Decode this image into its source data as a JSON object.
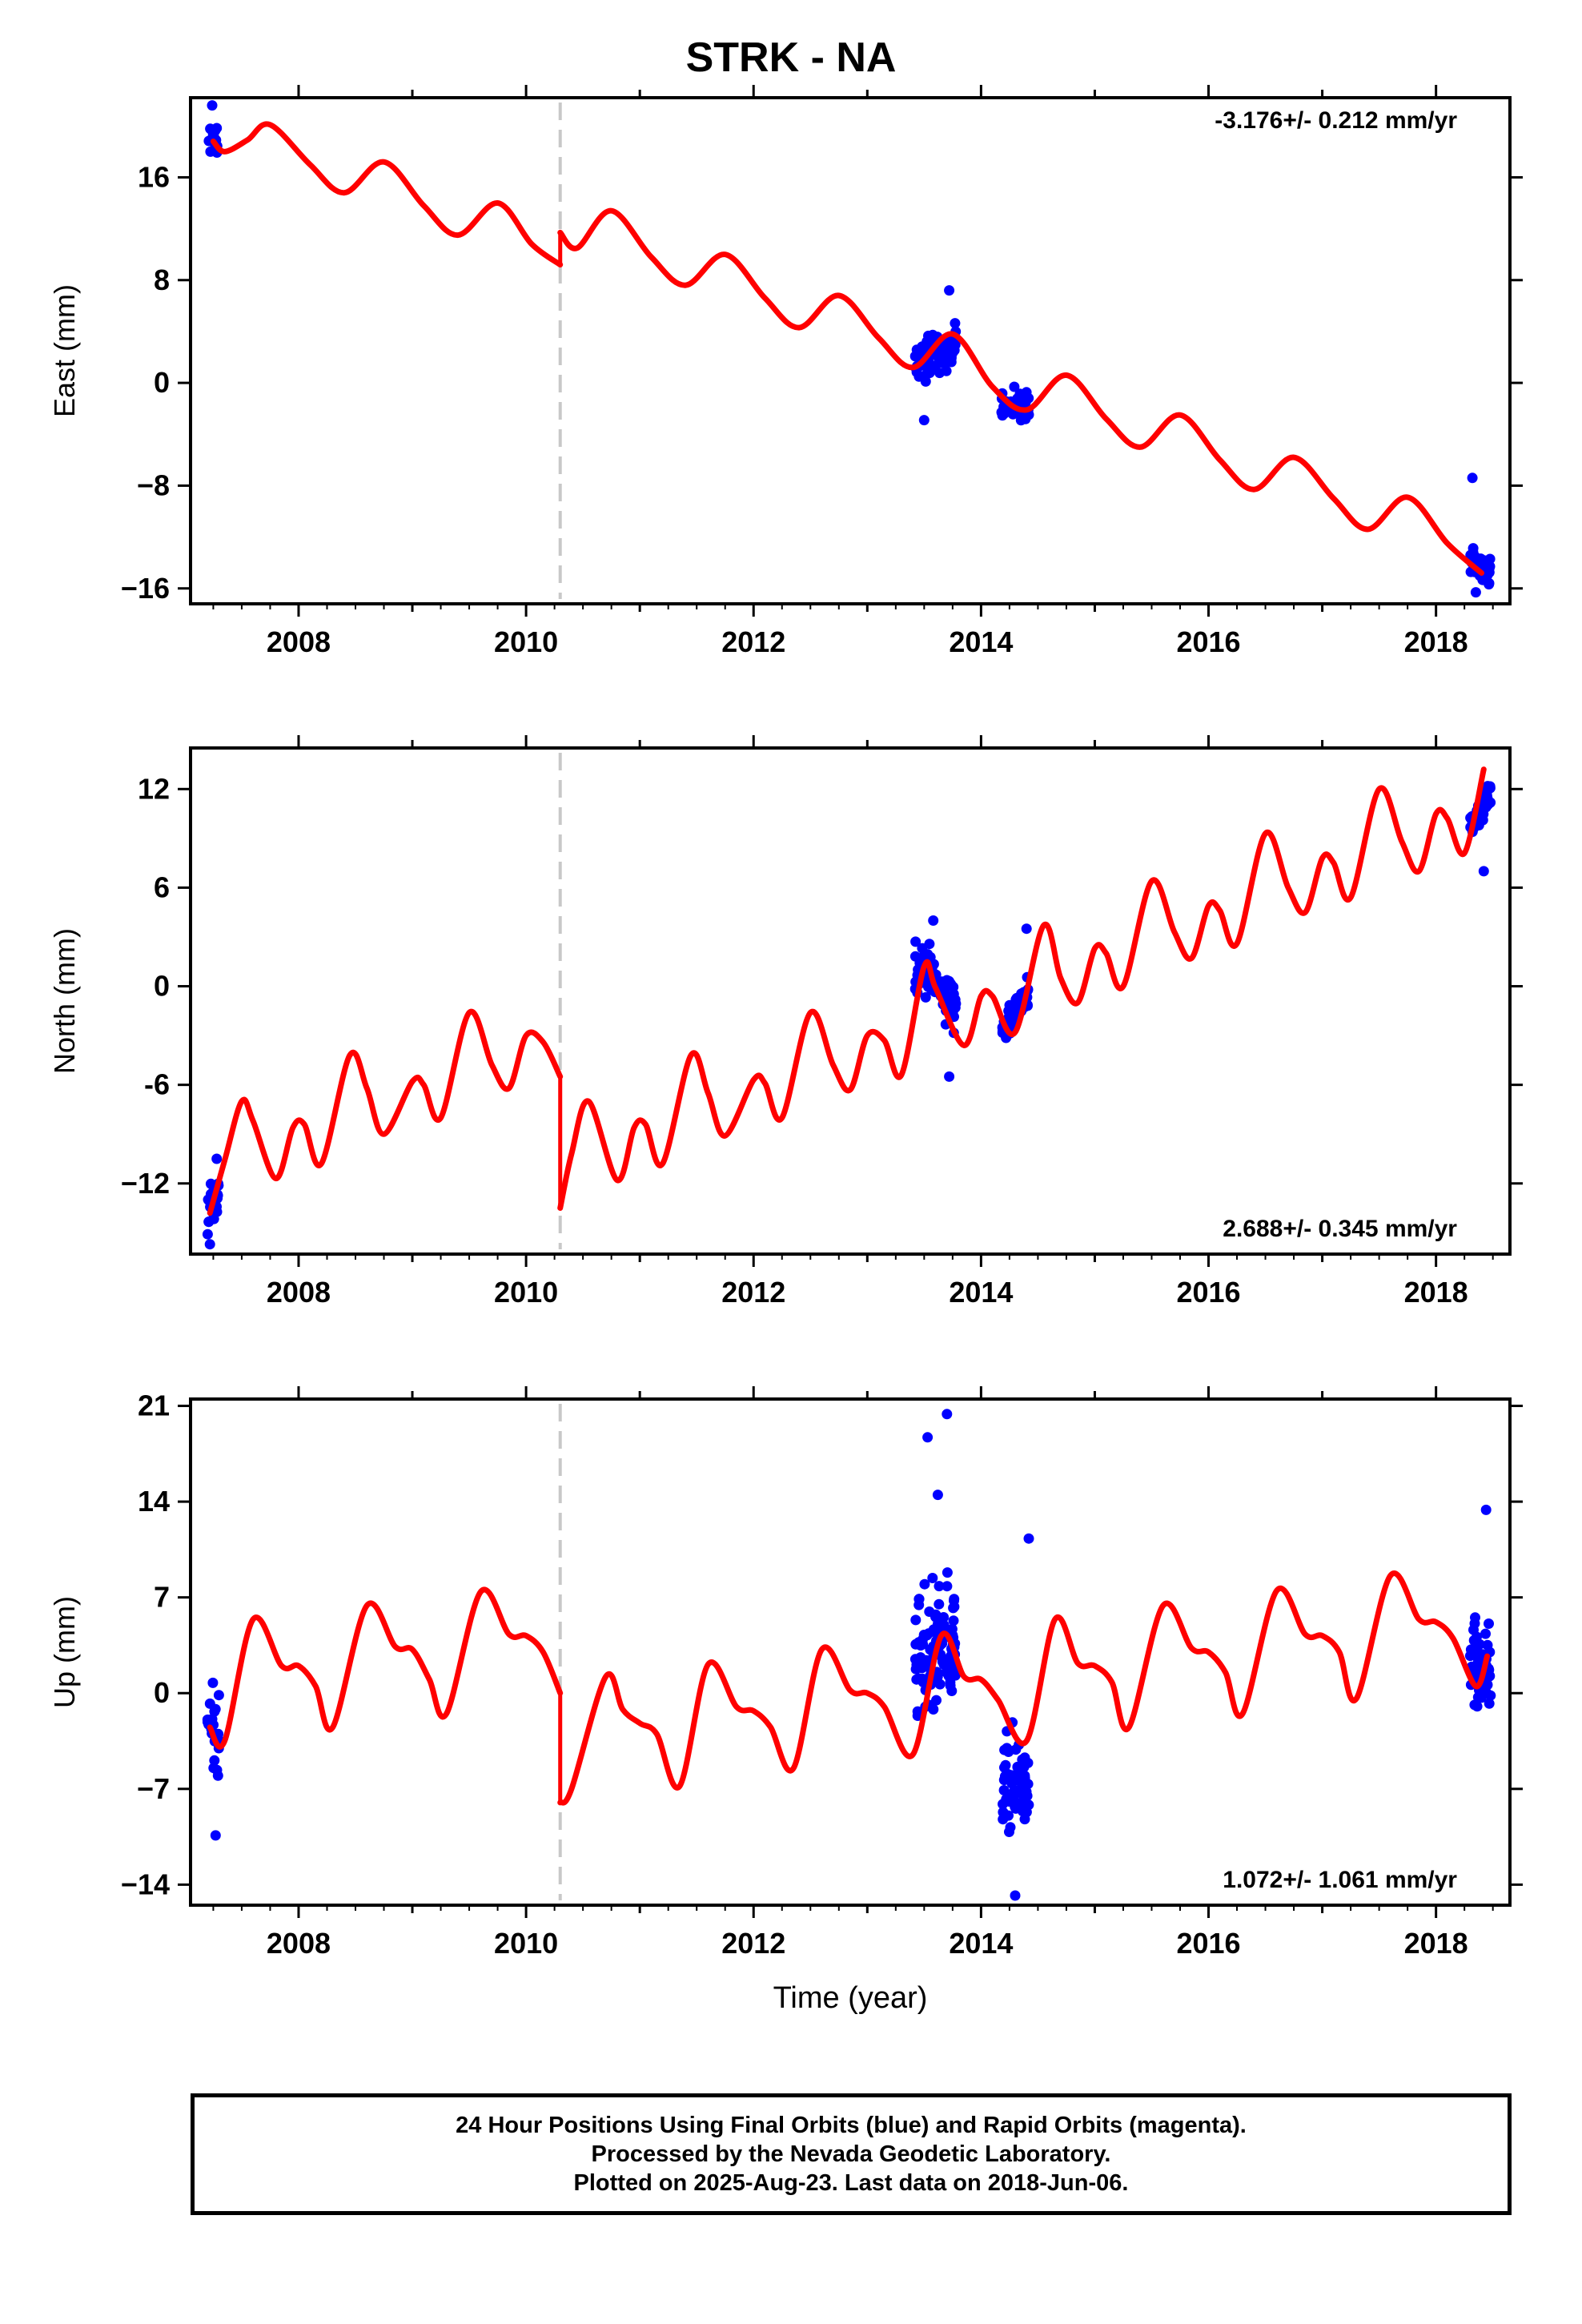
{
  "title": "STRK - NA",
  "footer": {
    "line1": "24 Hour Positions Using Final Orbits (blue) and Rapid Orbits (magenta).",
    "line2": "Processed by the Nevada Geodetic Laboratory.",
    "line3": "Plotted on 2025-Aug-23. Last data on 2018-Jun-06."
  },
  "colors": {
    "data": "#0000ff",
    "model": "#ff0000",
    "step": "#c8c8c8",
    "axis": "#000000"
  },
  "chart_data": [
    {
      "type": "scatter",
      "name": "east",
      "ylabel": "East (mm)",
      "rate_label": "-3.176+/- 0.212 mm/yr",
      "rate_position": "top-right",
      "xlim": [
        2007.05,
        2018.65
      ],
      "ylim": [
        -17.2,
        22.2
      ],
      "yticks": [
        16,
        8,
        0,
        -8,
        -16
      ],
      "ytick_labels": [
        "16",
        "8",
        "0",
        "−8",
        "−16"
      ],
      "xticks": [
        2008,
        2010,
        2012,
        2014,
        2016,
        2018
      ],
      "xtick_labels": [
        "2008",
        "2010",
        "2012",
        "2014",
        "2016",
        "2018"
      ],
      "step_epoch": 2010.3,
      "model": {
        "segments": [
          {
            "x": [
              2007.25,
              2007.35,
              2007.55,
              2007.75,
              2008.1,
              2008.4,
              2008.75,
              2009.1,
              2009.4,
              2009.75,
              2010.05,
              2010.3
            ],
            "y": [
              18.8,
              18.0,
              18.9,
              20.1,
              17.0,
              14.8,
              17.2,
              13.8,
              11.5,
              14.0,
              10.8,
              9.2
            ]
          },
          {
            "x": [
              2010.3,
              2010.45,
              2010.75,
              2011.1,
              2011.4,
              2011.75,
              2012.1,
              2012.4,
              2012.75,
              2013.1,
              2013.4,
              2013.75,
              2014.1,
              2014.4,
              2014.75,
              2015.1,
              2015.4,
              2015.75,
              2016.1,
              2016.4,
              2016.75,
              2017.1,
              2017.4,
              2017.75,
              2018.1,
              2018.4
            ],
            "y": [
              11.7,
              10.5,
              13.4,
              9.8,
              7.6,
              10.0,
              6.6,
              4.3,
              6.8,
              3.5,
              1.2,
              3.8,
              -0.3,
              -2.1,
              0.6,
              -2.8,
              -5.0,
              -2.5,
              -6.0,
              -8.3,
              -5.8,
              -9.0,
              -11.4,
              -8.9,
              -12.5,
              -14.8
            ]
          }
        ]
      },
      "observations": {
        "clusters": [
          {
            "start": 2007.2,
            "end": 2007.3,
            "n": 20,
            "y_center": 19.0,
            "y_spread": 2.2,
            "trend": 0
          },
          {
            "start": 2013.42,
            "end": 2013.78,
            "n": 90,
            "y_center": 2.2,
            "y_spread": 2.6,
            "trend": 1.5
          },
          {
            "start": 2014.18,
            "end": 2014.42,
            "n": 45,
            "y_center": -1.8,
            "y_spread": 2.2,
            "trend": 0
          },
          {
            "start": 2018.3,
            "end": 2018.48,
            "n": 50,
            "y_center": -14.2,
            "y_spread": 1.6,
            "trend": -1.0
          }
        ],
        "outliers": [
          {
            "x": 2013.72,
            "y": 7.2
          },
          {
            "x": 2018.32,
            "y": -7.4
          },
          {
            "x": 2007.24,
            "y": 21.6
          },
          {
            "x": 2013.5,
            "y": -2.9
          },
          {
            "x": 2018.35,
            "y": -16.3
          }
        ]
      }
    },
    {
      "type": "scatter",
      "name": "north",
      "ylabel": "North (mm)",
      "rate_label": "2.688+/- 0.345 mm/yr",
      "rate_position": "bottom-right",
      "xlim": [
        2007.05,
        2018.65
      ],
      "ylim": [
        -16.3,
        14.5
      ],
      "yticks": [
        12,
        6,
        0,
        -6,
        -12
      ],
      "ytick_labels": [
        "12",
        "6",
        "0",
        "-6",
        "−12"
      ],
      "xticks": [
        2008,
        2010,
        2012,
        2014,
        2016,
        2018
      ],
      "xtick_labels": [
        "2008",
        "2010",
        "2012",
        "2014",
        "2016",
        "2018"
      ],
      "step_epoch": 2010.3,
      "model": {
        "segments": [
          {
            "x": [
              2007.22,
              2007.35,
              2007.5,
              2007.6,
              2007.8,
              2007.95,
              2008.05,
              2008.2,
              2008.45,
              2008.6,
              2008.75,
              2009.0,
              2009.1,
              2009.25,
              2009.5,
              2009.7,
              2009.85,
              2010.0,
              2010.15,
              2010.3
            ],
            "y": [
              -13.8,
              -10.6,
              -7.0,
              -8.2,
              -11.7,
              -8.6,
              -8.4,
              -10.8,
              -4.2,
              -6.2,
              -9.0,
              -5.8,
              -6.0,
              -8.0,
              -1.6,
              -4.8,
              -6.2,
              -3.0,
              -3.4,
              -5.5
            ]
          },
          {
            "x": [
              2010.3,
              2010.4,
              2010.55,
              2010.8,
              2010.95,
              2011.05,
              2011.2,
              2011.45,
              2011.6,
              2011.75,
              2012.0,
              2012.1,
              2012.25,
              2012.5,
              2012.7,
              2012.85,
              2013.0,
              2013.15,
              2013.3,
              2013.5,
              2013.6,
              2013.85,
              2014.0,
              2014.1,
              2014.3,
              2014.55,
              2014.7,
              2014.85,
              2015.0,
              2015.1,
              2015.25,
              2015.5,
              2015.7,
              2015.85,
              2016.0,
              2016.1,
              2016.25,
              2016.5,
              2016.7,
              2016.85,
              2017.0,
              2017.1,
              2017.25,
              2017.5,
              2017.7,
              2017.85,
              2018.0,
              2018.1,
              2018.25,
              2018.42
            ],
            "y": [
              -13.5,
              -10.2,
              -7.0,
              -11.8,
              -8.6,
              -8.4,
              -10.8,
              -4.2,
              -6.5,
              -9.1,
              -5.7,
              -5.9,
              -8.0,
              -1.6,
              -4.8,
              -6.3,
              -3.0,
              -3.3,
              -5.4,
              1.2,
              -0.1,
              -3.6,
              -0.6,
              -0.6,
              -2.8,
              3.7,
              0.5,
              -1.0,
              2.3,
              2.0,
              0.0,
              6.4,
              3.3,
              1.7,
              4.9,
              4.6,
              2.6,
              9.3,
              6.0,
              4.5,
              7.8,
              7.5,
              5.4,
              12.0,
              8.8,
              7.0,
              10.5,
              10.2,
              8.1,
              13.2
            ]
          }
        ]
      },
      "observations": {
        "clusters": [
          {
            "start": 2007.2,
            "end": 2007.3,
            "n": 25,
            "y_center": -13.2,
            "y_spread": 2.4,
            "trend": 1.5
          },
          {
            "start": 2013.42,
            "end": 2013.78,
            "n": 90,
            "y_center": 0.2,
            "y_spread": 2.6,
            "trend": -2.5
          },
          {
            "start": 2014.18,
            "end": 2014.42,
            "n": 45,
            "y_center": -1.5,
            "y_spread": 1.8,
            "trend": 2.5
          },
          {
            "start": 2018.3,
            "end": 2018.48,
            "n": 50,
            "y_center": 10.8,
            "y_spread": 1.5,
            "trend": 2.0
          }
        ],
        "outliers": [
          {
            "x": 2007.28,
            "y": -10.5
          },
          {
            "x": 2013.72,
            "y": -5.5
          },
          {
            "x": 2014.4,
            "y": 3.5
          },
          {
            "x": 2018.42,
            "y": 7.0
          },
          {
            "x": 2007.22,
            "y": -15.7
          },
          {
            "x": 2013.58,
            "y": 4.0
          }
        ]
      }
    },
    {
      "type": "scatter",
      "name": "up",
      "ylabel": "Up (mm)",
      "xlabel": "Time (year)",
      "rate_label": "1.072+/- 1.061 mm/yr",
      "rate_position": "bottom-right",
      "xlim": [
        2007.05,
        2018.65
      ],
      "ylim": [
        -15.5,
        21.5
      ],
      "yticks": [
        21,
        14,
        7,
        0,
        -7,
        -14
      ],
      "ytick_labels": [
        "21",
        "14",
        "7",
        "0",
        "−7",
        "−14"
      ],
      "xticks": [
        2008,
        2010,
        2012,
        2014,
        2016,
        2018
      ],
      "xtick_labels": [
        "2008",
        "2010",
        "2012",
        "2014",
        "2016",
        "2018"
      ],
      "step_epoch": 2010.3,
      "model": {
        "segments": [
          {
            "x": [
              2007.22,
              2007.35,
              2007.6,
              2007.85,
              2008.0,
              2008.15,
              2008.3,
              2008.6,
              2008.85,
              2009.0,
              2009.15,
              2009.3,
              2009.6,
              2009.85,
              2010.0,
              2010.15,
              2010.3
            ],
            "y": [
              -2.5,
              -3.5,
              5.4,
              2.0,
              2.0,
              0.5,
              -2.5,
              6.4,
              3.4,
              3.2,
              1.0,
              -1.5,
              7.4,
              4.3,
              4.2,
              3.0,
              0.0
            ]
          },
          {
            "x": [
              2010.3,
              2010.4,
              2010.7,
              2010.85,
              2011.0,
              2011.15,
              2011.35,
              2011.6,
              2011.85,
              2012.0,
              2012.15,
              2012.35,
              2012.6,
              2012.85,
              2013.0,
              2013.15,
              2013.4,
              2013.65,
              2013.85,
              2014.0,
              2014.15,
              2014.4,
              2014.65,
              2014.85,
              2015.0,
              2015.15,
              2015.3,
              2015.6,
              2015.85,
              2016.0,
              2016.15,
              2016.3,
              2016.6,
              2016.85,
              2017.0,
              2017.15,
              2017.3,
              2017.6,
              2017.85,
              2018.0,
              2018.15,
              2018.35,
              2018.45
            ],
            "y": [
              -8.0,
              -7.0,
              1.2,
              -1.2,
              -2.2,
              -3.0,
              -6.8,
              2.1,
              -1.0,
              -1.3,
              -2.5,
              -5.5,
              3.2,
              0.2,
              0.0,
              -1.0,
              -4.5,
              4.2,
              1.2,
              1.0,
              -0.5,
              -3.5,
              5.4,
              2.2,
              2.0,
              0.8,
              -2.5,
              6.4,
              3.3,
              3.0,
              1.5,
              -1.5,
              7.5,
              4.3,
              4.2,
              3.0,
              -0.4,
              8.6,
              5.4,
              5.2,
              4.0,
              0.5,
              2.7
            ]
          }
        ]
      },
      "observations": {
        "clusters": [
          {
            "start": 2007.2,
            "end": 2007.3,
            "n": 25,
            "y_center": -2.8,
            "y_spread": 5.5,
            "trend": 0
          },
          {
            "start": 2013.42,
            "end": 2013.78,
            "n": 110,
            "y_center": 2.8,
            "y_spread": 8.0,
            "trend": 2.0
          },
          {
            "start": 2014.18,
            "end": 2014.42,
            "n": 70,
            "y_center": -6.5,
            "y_spread": 6.0,
            "trend": 0
          },
          {
            "start": 2018.3,
            "end": 2018.48,
            "n": 55,
            "y_center": 2.0,
            "y_spread": 5.5,
            "trend": 0
          }
        ],
        "outliers": [
          {
            "x": 2013.7,
            "y": 20.4
          },
          {
            "x": 2013.53,
            "y": 18.7
          },
          {
            "x": 2014.42,
            "y": 11.3
          },
          {
            "x": 2018.44,
            "y": 13.4
          },
          {
            "x": 2014.3,
            "y": -14.8
          },
          {
            "x": 2007.27,
            "y": -10.4
          },
          {
            "x": 2013.62,
            "y": 14.5
          }
        ]
      }
    }
  ]
}
